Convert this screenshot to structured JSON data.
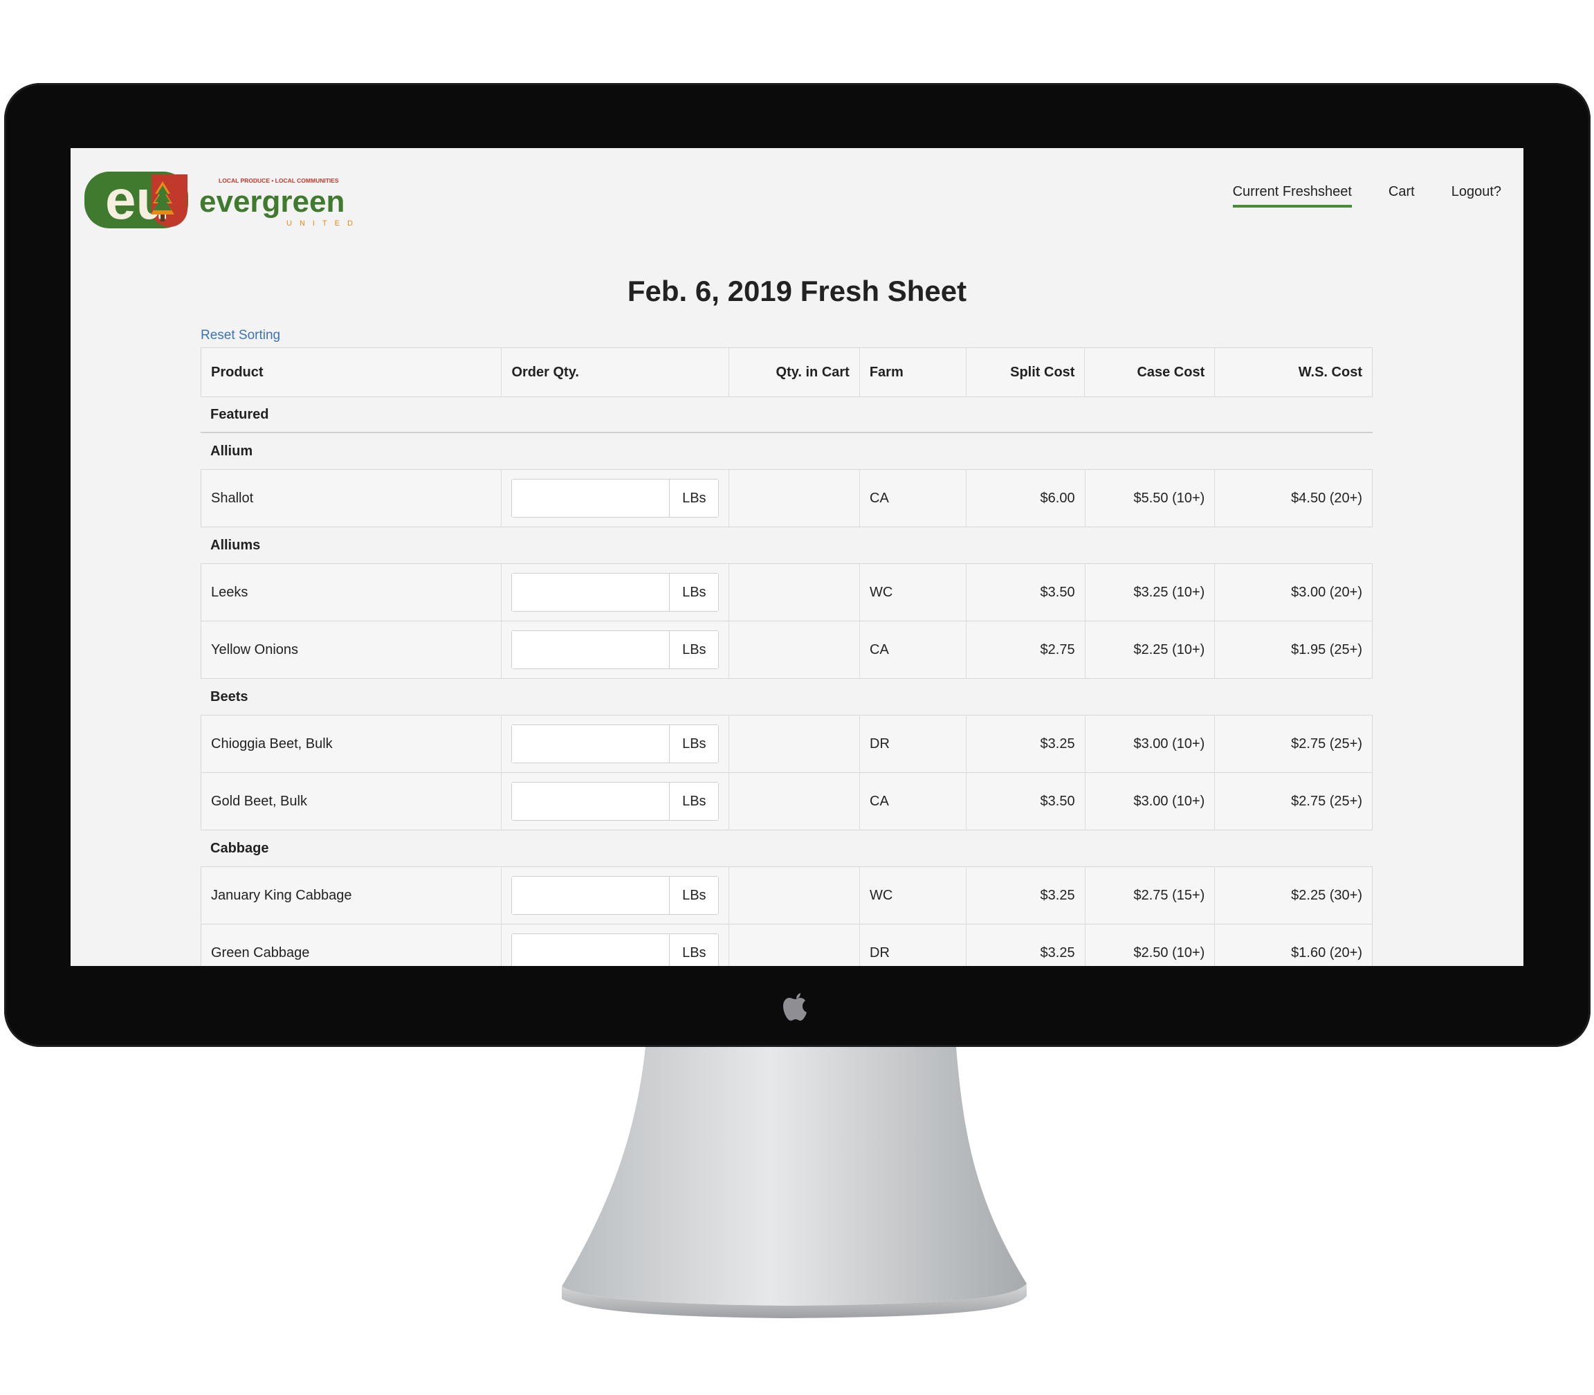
{
  "header": {
    "brand_name": "evergreen",
    "brand_sub": "UNITED",
    "brand_tagline": "LOCAL PRODUCE • LOCAL COMMUNITIES",
    "brand_monogram": "eu",
    "nav": [
      {
        "label": "Current Freshsheet",
        "active": true
      },
      {
        "label": "Cart",
        "active": false
      },
      {
        "label": "Logout?",
        "active": false
      }
    ]
  },
  "page": {
    "title": "Feb. 6, 2019 Fresh Sheet",
    "reset_label": "Reset Sorting"
  },
  "table": {
    "columns": [
      "Product",
      "Order Qty.",
      "Qty. in Cart",
      "Farm",
      "Split Cost",
      "Case Cost",
      "W.S. Cost"
    ],
    "unit": "LBs",
    "featured_label": "Featured",
    "groups": [
      {
        "name": "Allium",
        "rows": [
          {
            "product": "Shallot",
            "farm": "CA",
            "split": "$6.00",
            "case": "$5.50 (10+)",
            "ws": "$4.50 (20+)"
          }
        ]
      },
      {
        "name": "Alliums",
        "rows": [
          {
            "product": "Leeks",
            "farm": "WC",
            "split": "$3.50",
            "case": "$3.25 (10+)",
            "ws": "$3.00 (20+)"
          },
          {
            "product": "Yellow Onions",
            "farm": "CA",
            "split": "$2.75",
            "case": "$2.25 (10+)",
            "ws": "$1.95 (25+)"
          }
        ]
      },
      {
        "name": "Beets",
        "rows": [
          {
            "product": "Chioggia Beet, Bulk",
            "farm": "DR",
            "split": "$3.25",
            "case": "$3.00 (10+)",
            "ws": "$2.75 (25+)"
          },
          {
            "product": "Gold Beet, Bulk",
            "farm": "CA",
            "split": "$3.50",
            "case": "$3.00 (10+)",
            "ws": "$2.75 (25+)"
          }
        ]
      },
      {
        "name": "Cabbage",
        "rows": [
          {
            "product": "January King Cabbage",
            "farm": "WC",
            "split": "$3.25",
            "case": "$2.75 (15+)",
            "ws": "$2.25 (30+)"
          },
          {
            "product": "Green Cabbage",
            "farm": "DR",
            "split": "$3.25",
            "case": "$2.50 (10+)",
            "ws": "$1.60 (20+)"
          }
        ]
      }
    ]
  },
  "colors": {
    "brand_green": "#3f7a2e",
    "brand_red": "#c0392b",
    "brand_orange": "#e88a1a",
    "link_blue": "#3a73b8",
    "nav_underline": "#4a8b3a"
  }
}
